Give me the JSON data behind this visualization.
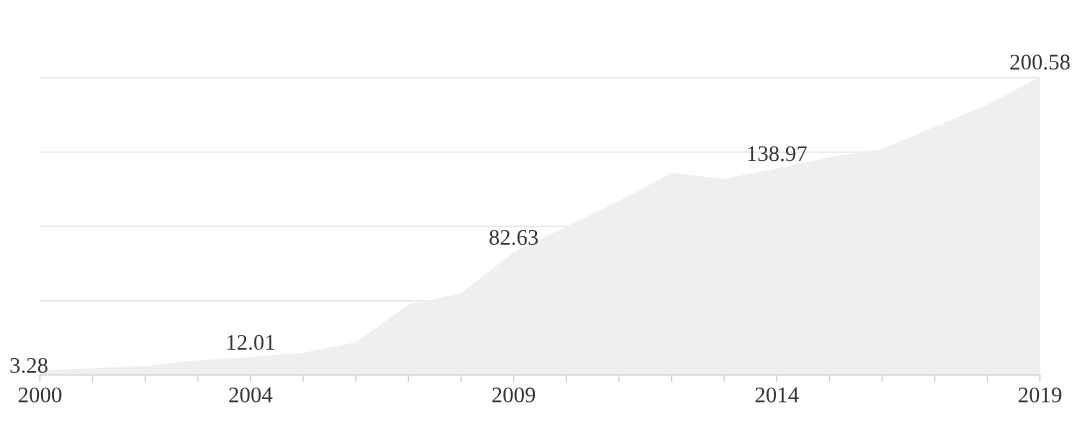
{
  "chart_data": {
    "type": "area",
    "x": [
      2000,
      2001,
      2002,
      2003,
      2004,
      2005,
      2006,
      2007,
      2008,
      2009,
      2010,
      2011,
      2012,
      2013,
      2014,
      2015,
      2016,
      2017,
      2018,
      2019
    ],
    "series": [
      {
        "color": "#efefef",
        "values": [
          3.28,
          4.5,
          6,
          10,
          12.01,
          15,
          22,
          47.5,
          55,
          82.63,
          100,
          117,
          136,
          132,
          138.97,
          146.5,
          152,
          167,
          182,
          200.58
        ],
        "value_labels": [
          "3.28",
          null,
          null,
          null,
          "12.01",
          null,
          null,
          null,
          null,
          "82.63",
          null,
          null,
          null,
          null,
          "138.97",
          null,
          null,
          null,
          null,
          "200.58"
        ]
      }
    ],
    "xlim": [
      2000,
      2019
    ],
    "xticks": [
      2000,
      {
        "value": 2001,
        "label": null
      },
      {
        "value": 2002,
        "label": null
      },
      {
        "value": 2003,
        "label": null
      },
      2004,
      {
        "value": 2005,
        "label": null
      },
      {
        "value": 2006,
        "label": null
      },
      {
        "value": 2007,
        "label": null
      },
      {
        "value": 2008,
        "label": null
      },
      2009,
      {
        "value": 2010,
        "label": null
      },
      {
        "value": 2011,
        "label": null
      },
      {
        "value": 2012,
        "label": null
      },
      {
        "value": 2013,
        "label": null
      },
      2014,
      {
        "value": 2015,
        "label": null
      },
      {
        "value": 2016,
        "label": null
      },
      {
        "value": 2017,
        "label": null
      },
      {
        "value": 2018,
        "label": null
      },
      2019
    ],
    "yticks": [
      {
        "value": 50,
        "label": null
      },
      {
        "value": 100,
        "label": null
      },
      {
        "value": 150,
        "label": null
      },
      {
        "value": 200,
        "label": null
      }
    ],
    "grid": "y",
    "tick_labels": "x"
  }
}
